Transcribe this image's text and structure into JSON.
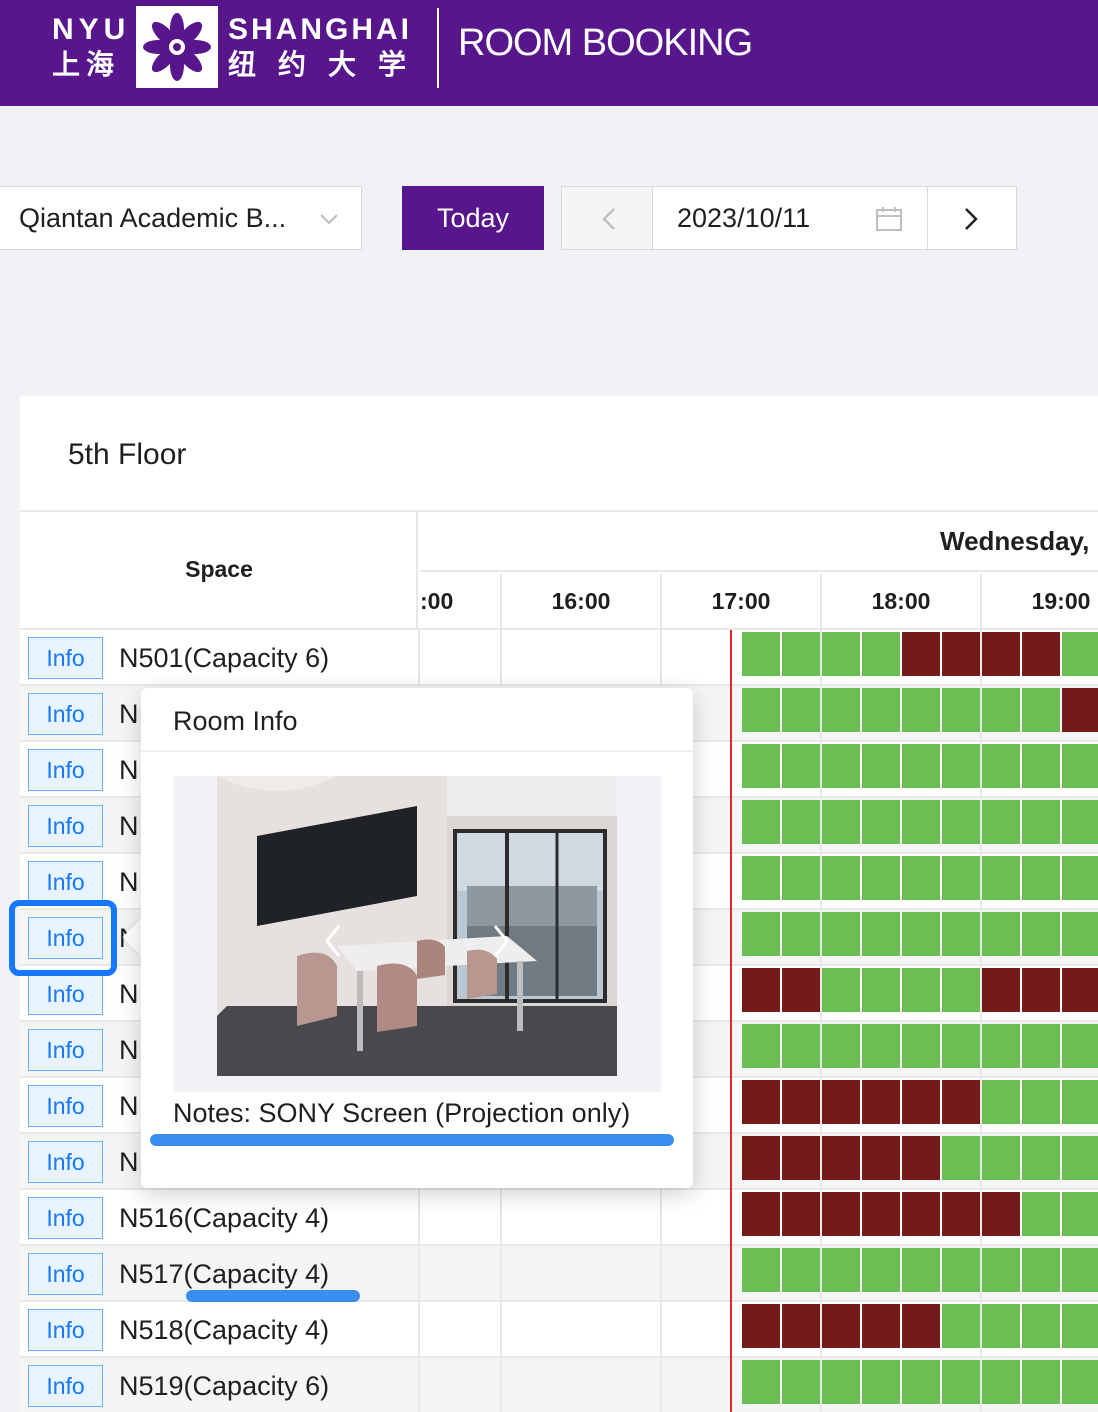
{
  "header": {
    "logo_en_left": "NYU",
    "logo_cn_left": "上海",
    "logo_en_right": "SHANGHAI",
    "logo_cn_right": "纽约大学",
    "title": "ROOM BOOKING"
  },
  "toolbar": {
    "building": "Qiantan Academic B...",
    "today_label": "Today",
    "date": "2023/10/11"
  },
  "schedule": {
    "floor": "5th Floor",
    "space_header": "Space",
    "day_header": "Wednesday,",
    "times": [
      ":00",
      "16:00",
      "17:00",
      "18:00",
      "19:00"
    ],
    "info_label": "Info",
    "rooms": [
      {
        "name": "N501(Capacity 6)",
        "slots": "GGGGBBBBG"
      },
      {
        "name": "N",
        "slots": "GGGGGGGGB"
      },
      {
        "name": "N",
        "slots": "GGGGGGGGG"
      },
      {
        "name": "N",
        "slots": "GGGGGGGGG"
      },
      {
        "name": "N",
        "slots": "GGGGGGGGG"
      },
      {
        "name": "N",
        "slots": "GGGGGGGGG"
      },
      {
        "name": "N",
        "slots": "BBGGGGBBB"
      },
      {
        "name": "N",
        "slots": "GGGGGGGGG"
      },
      {
        "name": "N",
        "slots": "BBBBBBGGG"
      },
      {
        "name": "N",
        "slots": "BBBBBGGGG"
      },
      {
        "name": "N516(Capacity 4)",
        "slots": "BBBBBBBGG"
      },
      {
        "name": "N517(Capacity 4)",
        "slots": "GGGGGGGGG"
      },
      {
        "name": "N518(Capacity 4)",
        "slots": "BBBBBGGGG"
      },
      {
        "name": "N519(Capacity 6)",
        "slots": "GGGGGGGGG"
      }
    ]
  },
  "popover": {
    "title": "Room Info",
    "notes": "Notes: SONY Screen (Projection only)"
  },
  "colors": {
    "brand": "#57168c",
    "available": "#6abe54",
    "booked": "#731a1a",
    "now_line": "#e0282e",
    "highlight": "#1677ff"
  }
}
